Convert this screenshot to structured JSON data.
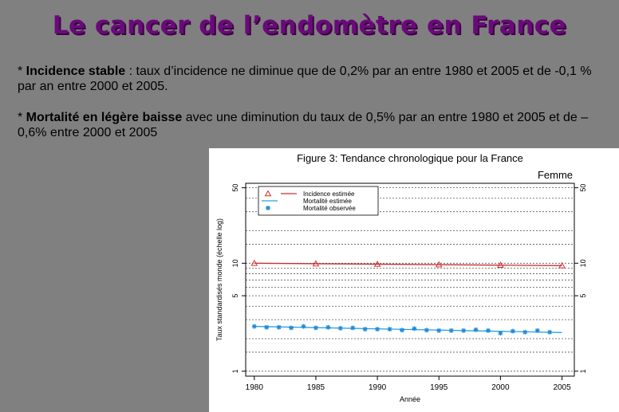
{
  "slide": {
    "title": "Le cancer de l’endomètre en France",
    "bullet1": {
      "prefix": "* ",
      "bold": "Incidence stable",
      "rest": " : taux d’incidence ne diminue que de 0,2% par an entre 1980 et 2005 et de -0,1 % par an entre 2000 et 2005."
    },
    "bullet2": {
      "prefix": "* ",
      "bold": "Mortalité en légère baisse",
      "rest": " avec une diminution du taux de 0,5% par an entre 1980 et 2005 et de – 0,6% entre 2000 et 2005"
    }
  },
  "chart_data": {
    "type": "scatter",
    "title": "Figure 3: Tendance chronologique pour la France",
    "subtitle": "Femme",
    "xlabel": "Année",
    "ylabel": "Taux standardisés monde (échelle log)",
    "y_scale": "log",
    "xlim": [
      1979.3,
      2006
    ],
    "ylim": [
      0.9,
      55
    ],
    "x_ticks": [
      1980,
      1985,
      1990,
      1995,
      2000,
      2005
    ],
    "y_ticks": [
      1,
      5,
      10,
      50
    ],
    "grid_y": [
      1.5,
      2,
      3,
      4,
      6,
      7,
      8,
      9,
      15,
      20,
      30,
      40
    ],
    "legend_position": "top-left",
    "series": [
      {
        "name": "Incidence estimée",
        "kind": "points",
        "marker": "triangle",
        "color": "#e03030",
        "x": [
          1980,
          1985,
          1990,
          1995,
          2000,
          2005
        ],
        "y": [
          10.0,
          9.9,
          9.8,
          9.7,
          9.6,
          9.5
        ]
      },
      {
        "name": "Incidence estimée",
        "kind": "line",
        "color": "#c83030",
        "x": [
          1980,
          2005
        ],
        "y": [
          10.0,
          9.5
        ]
      },
      {
        "name": "Mortalité estimée",
        "kind": "line",
        "color": "#2aa0e0",
        "x": [
          1980,
          2005
        ],
        "y": [
          2.6,
          2.28
        ]
      },
      {
        "name": "Mortalité observée",
        "kind": "points",
        "marker": "star",
        "color": "#1f8ad8",
        "x": [
          1980,
          1981,
          1982,
          1983,
          1984,
          1985,
          1986,
          1987,
          1988,
          1989,
          1990,
          1991,
          1992,
          1993,
          1994,
          1995,
          1996,
          1997,
          1998,
          1999,
          2000,
          2001,
          2002,
          2003,
          2004
        ],
        "y": [
          2.6,
          2.55,
          2.55,
          2.52,
          2.6,
          2.52,
          2.55,
          2.5,
          2.52,
          2.45,
          2.45,
          2.45,
          2.4,
          2.48,
          2.4,
          2.38,
          2.38,
          2.38,
          2.42,
          2.38,
          2.25,
          2.35,
          2.3,
          2.38,
          2.3
        ]
      }
    ],
    "legend": [
      {
        "label": "Incidence estimée",
        "marker": "triangle-line",
        "color": "#d03030"
      },
      {
        "label": "Mortalité estimée",
        "marker": "line",
        "color": "#2aa0e0"
      },
      {
        "label": "Mortalité observée",
        "marker": "star",
        "color": "#1f8ad8"
      }
    ]
  }
}
